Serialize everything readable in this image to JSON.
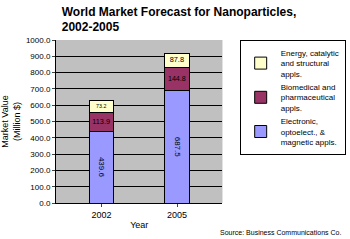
{
  "chart_data": {
    "type": "bar",
    "title": "World Market Forecast for Nanoparticles, 2002-2005",
    "x_label": "Year",
    "y_label": "Market Value (Million $)",
    "categories": [
      "2002",
      "2005"
    ],
    "series": [
      {
        "name": "Electronic, optoelect., & magnetic appls.",
        "color": "#9999ff",
        "values": [
          439.6,
          687.5
        ]
      },
      {
        "name": "Biomedical and pharmaceutical appls.",
        "color": "#993366",
        "values": [
          113.9,
          144.8
        ]
      },
      {
        "name": "Energy, catalytic and structural appls.",
        "color": "#ffffcc",
        "values": [
          73.2,
          87.8
        ]
      }
    ],
    "stacked": true,
    "data_labels": true,
    "ylim": [
      0,
      1000
    ],
    "yticks": [
      {
        "value": 0,
        "label": "0.0"
      },
      {
        "value": 100,
        "label": "100.0"
      },
      {
        "value": 200,
        "label": "200.0"
      },
      {
        "value": 300,
        "label": "300.0"
      },
      {
        "value": 400,
        "label": "400.0"
      },
      {
        "value": 500,
        "label": "500.0"
      },
      {
        "value": 600,
        "label": "600.0"
      },
      {
        "value": 700,
        "label": "700.0"
      },
      {
        "value": 800,
        "label": "800.0"
      },
      {
        "value": 900,
        "label": "900.0"
      },
      {
        "value": 1000,
        "label": "1000.0"
      }
    ],
    "grid": true,
    "legend": "right",
    "annotations": [
      "Source: Business Communications Co."
    ]
  }
}
